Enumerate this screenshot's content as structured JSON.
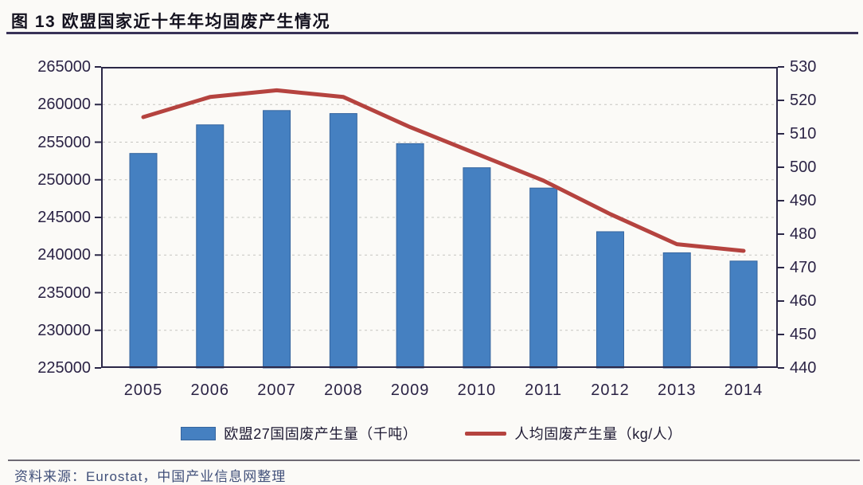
{
  "figure": {
    "title": "图 13 欧盟国家近十年年均固废产生情况",
    "source_note": "资料来源：Eurostat，中国产业信息网整理"
  },
  "chart_data": {
    "type": "bar",
    "subtype": "combo-bar-line-dual-axis",
    "title": "图 13 欧盟国家近十年年均固废产生情况",
    "categories": [
      "2005",
      "2006",
      "2007",
      "2008",
      "2009",
      "2010",
      "2011",
      "2012",
      "2013",
      "2014"
    ],
    "series": [
      {
        "name": "欧盟27国固废产生量（千吨）",
        "type": "bar",
        "axis": "left",
        "color": "#4580c1",
        "values": [
          253500,
          257300,
          259200,
          258800,
          254800,
          251600,
          248900,
          243100,
          240300,
          239200
        ]
      },
      {
        "name": "人均固废产生量（kg/人）",
        "type": "line",
        "axis": "right",
        "color": "#b5433f",
        "values": [
          515,
          521,
          523,
          521,
          512,
          504,
          496,
          486,
          477,
          475
        ]
      }
    ],
    "left_axis": {
      "min": 225000,
      "max": 265000,
      "step": 5000,
      "tick_labels": [
        "265000",
        "260000",
        "255000",
        "250000",
        "245000",
        "240000",
        "235000",
        "230000",
        "225000"
      ]
    },
    "right_axis": {
      "min": 440,
      "max": 530,
      "step": 10,
      "tick_labels": [
        "530",
        "520",
        "510",
        "500",
        "490",
        "480",
        "470",
        "460",
        "450",
        "440"
      ]
    },
    "grid": "horizontal-dashed",
    "legend_position": "bottom",
    "xlabel": "",
    "ylabel": ""
  },
  "colors": {
    "bar_fill": "#4580c1",
    "bar_border": "#35649e",
    "line_stroke": "#b5433f",
    "frame": "#2b2747",
    "gridline": "#c6c5c1",
    "tick_text": "#2b2345",
    "title_text": "#14121f",
    "rule": "#393358"
  }
}
